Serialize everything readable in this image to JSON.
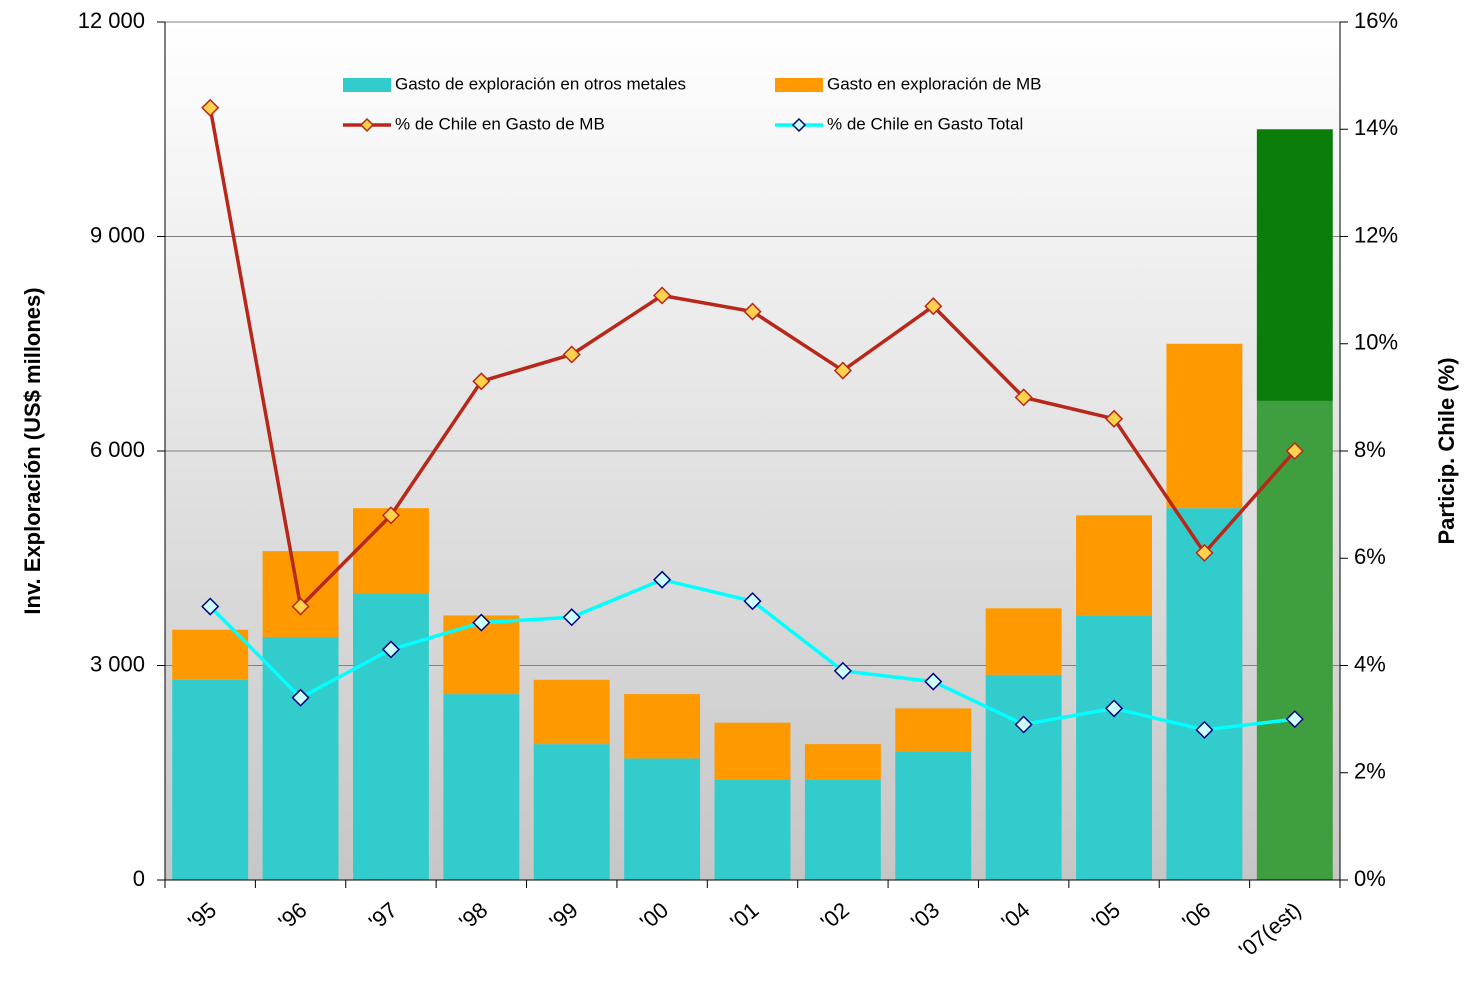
{
  "chart_data": {
    "type": "bar",
    "stacked": true,
    "categories": [
      "'95",
      "'96",
      "'97",
      "'98",
      "'99",
      "'00",
      "'01",
      "'02",
      "'03",
      "'04",
      "'05",
      "'06",
      "'07(est)"
    ],
    "ylabel": "Inv. Exploración (US$ millones)",
    "y2label": "Particip. Chile (%)",
    "ylim": [
      0,
      12000
    ],
    "yticks": [
      0,
      {
        "value": 3000,
        "label": "3 000"
      },
      {
        "value": 6000,
        "label": "6 000"
      },
      {
        "value": 9000,
        "label": "9 000"
      },
      {
        "value": 12000,
        "label": "12 000"
      }
    ],
    "y2lim": [
      0,
      16
    ],
    "y2ticks": [
      {
        "value": 0,
        "label": "0%"
      },
      {
        "value": 2,
        "label": "2%"
      },
      {
        "value": 4,
        "label": "4%"
      },
      {
        "value": 6,
        "label": "6%"
      },
      {
        "value": 8,
        "label": "8%"
      },
      {
        "value": 10,
        "label": "10%"
      },
      {
        "value": 12,
        "label": "12%"
      },
      {
        "value": 14,
        "label": "14%"
      },
      {
        "value": 16,
        "label": "16%"
      }
    ],
    "grid": true,
    "legend": "top",
    "series": [
      {
        "name": "Gasto de exploración en otros metales",
        "type": "bar",
        "color": "#33cccc",
        "colors": [
          "#33cccc",
          "#33cccc",
          "#33cccc",
          "#33cccc",
          "#33cccc",
          "#33cccc",
          "#33cccc",
          "#33cccc",
          "#33cccc",
          "#33cccc",
          "#33cccc",
          "#33cccc",
          "#3f9e3f"
        ],
        "values": [
          2800,
          3400,
          4000,
          2600,
          1900,
          1700,
          1400,
          1400,
          1800,
          2870,
          3700,
          5200,
          6700
        ]
      },
      {
        "name": "Gasto en exploración de MB",
        "type": "bar",
        "color": "#ff9900",
        "colors": [
          "#ff9900",
          "#ff9900",
          "#ff9900",
          "#ff9900",
          "#ff9900",
          "#ff9900",
          "#ff9900",
          "#ff9900",
          "#ff9900",
          "#ff9900",
          "#ff9900",
          "#ff9900",
          "#0b7d0b"
        ],
        "values": [
          700,
          1200,
          1200,
          1100,
          900,
          900,
          800,
          500,
          600,
          930,
          1400,
          2300,
          3800
        ]
      },
      {
        "name": "% de Chile en Gasto de MB",
        "type": "line",
        "axis": "y2",
        "color": "#b8281a",
        "marker_color": "#ffd24d",
        "values": [
          14.4,
          5.1,
          6.8,
          9.3,
          9.8,
          10.9,
          10.6,
          9.5,
          10.7,
          9.0,
          8.6,
          6.1,
          8.0
        ]
      },
      {
        "name": "% de Chile en Gasto Total",
        "type": "line",
        "axis": "y2",
        "color": "#00ffff",
        "marker_color": "#ccffff",
        "marker_edge": "#000080",
        "values": [
          5.1,
          3.4,
          4.3,
          4.8,
          4.9,
          5.6,
          5.2,
          3.9,
          3.7,
          2.9,
          3.2,
          2.8,
          3.0
        ]
      }
    ]
  }
}
